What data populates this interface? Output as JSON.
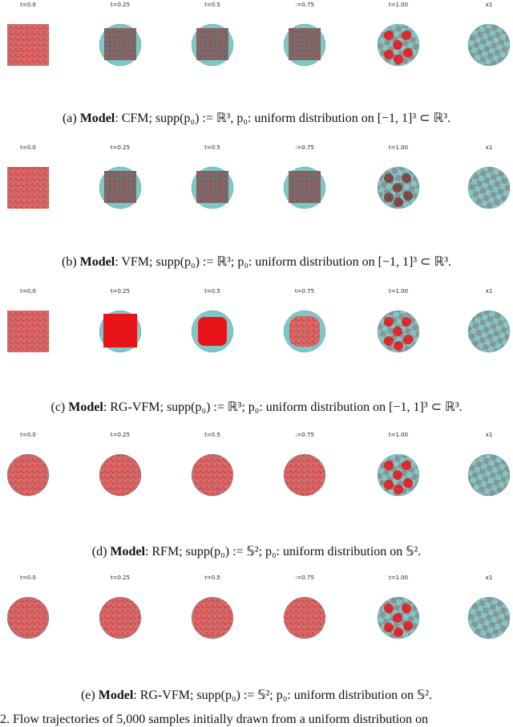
{
  "rows": [
    {
      "labels": [
        "t=0.0",
        "t=0.25",
        "t=0.5",
        ":=0.75",
        "t=1.00",
        "x1"
      ],
      "caption": {
        "label": "(a)",
        "model": "Model",
        "text": ": CFM; supp(p₀) := ℝ³, p₀: uniform distribution on [−1, 1]³ ⊂ ℝ³."
      }
    },
    {
      "labels": [
        "t=0.0",
        "t=0.25",
        "t=0.5",
        ":=0.75",
        "t=1.00",
        "x1"
      ],
      "caption": {
        "label": "(b)",
        "model": "Model",
        "text": ": VFM; supp(p₀) := ℝ³; p₀: uniform distribution on [−1, 1]³ ⊂ ℝ³."
      }
    },
    {
      "labels": [
        "t=0.0",
        "t=0.25",
        "t=0.5",
        "t=0.75",
        "t=1.00",
        "x1"
      ],
      "caption": {
        "label": "(c)",
        "model": "Model",
        "text": ": RG-VFM; supp(p₀) := ℝ³; p₀: uniform distribution on [−1, 1]³ ⊂ ℝ³."
      }
    },
    {
      "labels": [
        "t=0.0",
        "t=0.25",
        "t=0.5",
        ":=0.75",
        "t=1.00",
        "x1"
      ],
      "caption": {
        "label": "(d)",
        "model": "Model",
        "text": ": RFM; supp(p₀) := 𝕊²; p₀: uniform distribution on 𝕊²."
      }
    },
    {
      "labels": [
        "t=0.0",
        "t=0.25",
        "t=0.5",
        ":=0.75",
        "t=1.00",
        "x1"
      ],
      "caption": {
        "label": "(e)",
        "model": "Model",
        "text": ": RG-VFM; supp(p₀) := 𝕊²; p₀: uniform distribution on 𝕊²."
      }
    }
  ],
  "footer": "2. Flow trajectories of 5,000 samples initially drawn from a uniform distribution on"
}
